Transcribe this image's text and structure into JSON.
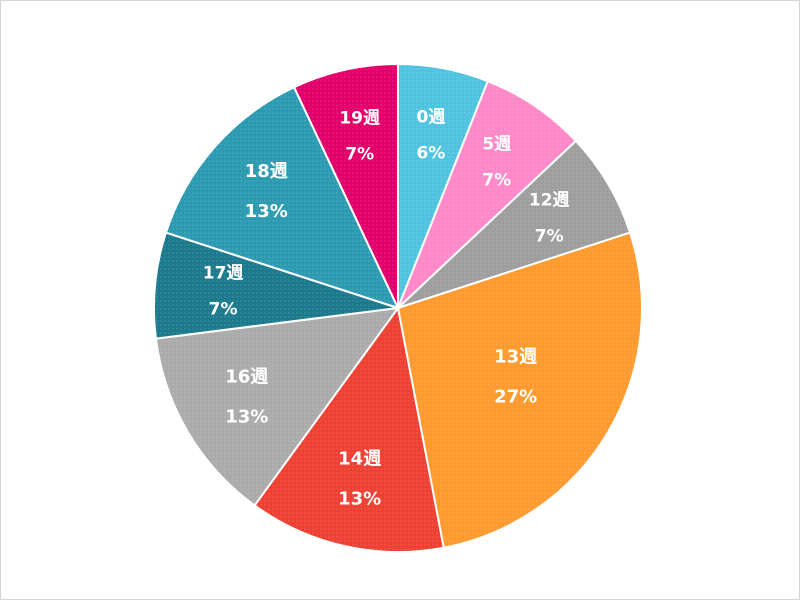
{
  "chart_data": {
    "type": "pie",
    "title": "",
    "start_angle_deg": 0,
    "direction": "clockwise",
    "slices": [
      {
        "label": "0週",
        "percent_label": "6%",
        "value": 6,
        "color": "#4FC3E0"
      },
      {
        "label": "5週",
        "percent_label": "7%",
        "value": 7,
        "color": "#FF88C8"
      },
      {
        "label": "12週",
        "percent_label": "7%",
        "value": 7,
        "color": "#9E9E9E"
      },
      {
        "label": "13週",
        "percent_label": "27%",
        "value": 27,
        "color": "#FF9A2E"
      },
      {
        "label": "14週",
        "percent_label": "13%",
        "value": 13,
        "color": "#EE4033"
      },
      {
        "label": "16週",
        "percent_label": "13%",
        "value": 13,
        "color": "#ABABAB"
      },
      {
        "label": "17週",
        "percent_label": "7%",
        "value": 7,
        "color": "#1B7A8C"
      },
      {
        "label": "18週",
        "percent_label": "13%",
        "value": 13,
        "color": "#2C9BB2"
      },
      {
        "label": "19週",
        "percent_label": "7%",
        "value": 7,
        "color": "#E4006A"
      }
    ],
    "legend": "none",
    "data_labels": "inside"
  }
}
